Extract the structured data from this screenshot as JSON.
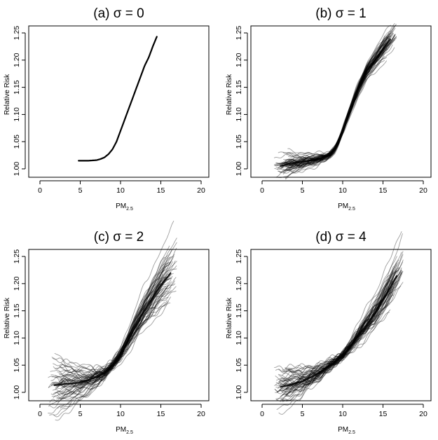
{
  "chart_data": [
    {
      "type": "line",
      "title": "(a) σ = 0",
      "xlabel": "PM",
      "xlabel_sub": "2.5",
      "ylabel": "Relative Risk",
      "xlim": [
        0,
        20
      ],
      "ylim": [
        1.0,
        1.25
      ],
      "xticks": [
        "0",
        "5",
        "10",
        "15",
        "20"
      ],
      "yticks": [
        "1.00",
        "1.05",
        "1.10",
        "1.15",
        "1.20",
        "1.25"
      ],
      "grid": false,
      "n_curves": 1,
      "noise_sd": 0,
      "ci_halfwidth_at_ends": 0,
      "central_curve": {
        "x": [
          4.8,
          6.0,
          7.0,
          7.5,
          8.0,
          8.5,
          9.0,
          9.5,
          10.0,
          10.5,
          11.0,
          11.5,
          12.0,
          12.5,
          13.0,
          13.5,
          14.0,
          14.5
        ],
        "y": [
          1.015,
          1.015,
          1.016,
          1.018,
          1.021,
          1.027,
          1.036,
          1.05,
          1.07,
          1.09,
          1.11,
          1.13,
          1.15,
          1.17,
          1.19,
          1.205,
          1.225,
          1.243
        ]
      }
    },
    {
      "type": "line",
      "title": "(b) σ = 1",
      "xlabel": "PM",
      "xlabel_sub": "2.5",
      "ylabel": "Relative Risk",
      "xlim": [
        0,
        20
      ],
      "ylim": [
        1.0,
        1.25
      ],
      "xticks": [
        "0",
        "5",
        "10",
        "15",
        "20"
      ],
      "yticks": [
        "1.00",
        "1.05",
        "1.10",
        "1.15",
        "1.20",
        "1.25"
      ],
      "grid": false,
      "n_curves": 60,
      "noise_sd": 0.004,
      "ci_halfwidth_at_ends": 0.012,
      "central_curve": {
        "x": [
          1.5,
          3.0,
          5.0,
          7.0,
          8.0,
          8.5,
          9.0,
          9.5,
          10.0,
          11.0,
          12.0,
          13.0,
          14.0,
          15.0,
          16.0,
          16.7
        ],
        "y": [
          1.002,
          1.008,
          1.013,
          1.018,
          1.023,
          1.028,
          1.036,
          1.05,
          1.07,
          1.11,
          1.15,
          1.18,
          1.2,
          1.22,
          1.24,
          1.255
        ]
      }
    },
    {
      "type": "line",
      "title": "(c) σ = 2",
      "xlabel": "PM",
      "xlabel_sub": "2.5",
      "ylabel": "Relative Risk",
      "xlim": [
        0,
        20
      ],
      "ylim": [
        1.0,
        1.25
      ],
      "xticks": [
        "0",
        "5",
        "10",
        "15",
        "20"
      ],
      "yticks": [
        "1.00",
        "1.05",
        "1.10",
        "1.15",
        "1.20",
        "1.25"
      ],
      "grid": false,
      "n_curves": 60,
      "noise_sd": 0.006,
      "ci_halfwidth_at_ends": 0.025,
      "central_curve": {
        "x": [
          1.0,
          3.0,
          5.0,
          7.0,
          8.0,
          9.0,
          10.0,
          11.0,
          12.0,
          13.0,
          14.0,
          15.0,
          16.0,
          17.0
        ],
        "y": [
          1.012,
          1.015,
          1.018,
          1.028,
          1.035,
          1.05,
          1.07,
          1.097,
          1.125,
          1.152,
          1.175,
          1.197,
          1.215,
          1.235
        ]
      }
    },
    {
      "type": "line",
      "title": "(d) σ = 4",
      "xlabel": "PM",
      "xlabel_sub": "2.5",
      "ylabel": "Relative Risk",
      "xlim": [
        0,
        20
      ],
      "ylim": [
        1.0,
        1.25
      ],
      "xticks": [
        "0",
        "5",
        "10",
        "15",
        "20"
      ],
      "yticks": [
        "1.00",
        "1.05",
        "1.10",
        "1.15",
        "1.20",
        "1.25"
      ],
      "grid": false,
      "n_curves": 60,
      "noise_sd": 0.006,
      "ci_halfwidth_at_ends": 0.02,
      "central_curve": {
        "x": [
          1.5,
          3.0,
          5.0,
          7.0,
          9.0,
          10.0,
          11.0,
          12.0,
          13.0,
          14.0,
          15.0,
          16.0,
          17.0,
          17.5
        ],
        "y": [
          1.008,
          1.012,
          1.02,
          1.035,
          1.055,
          1.067,
          1.085,
          1.105,
          1.125,
          1.145,
          1.17,
          1.195,
          1.222,
          1.24
        ]
      }
    }
  ]
}
